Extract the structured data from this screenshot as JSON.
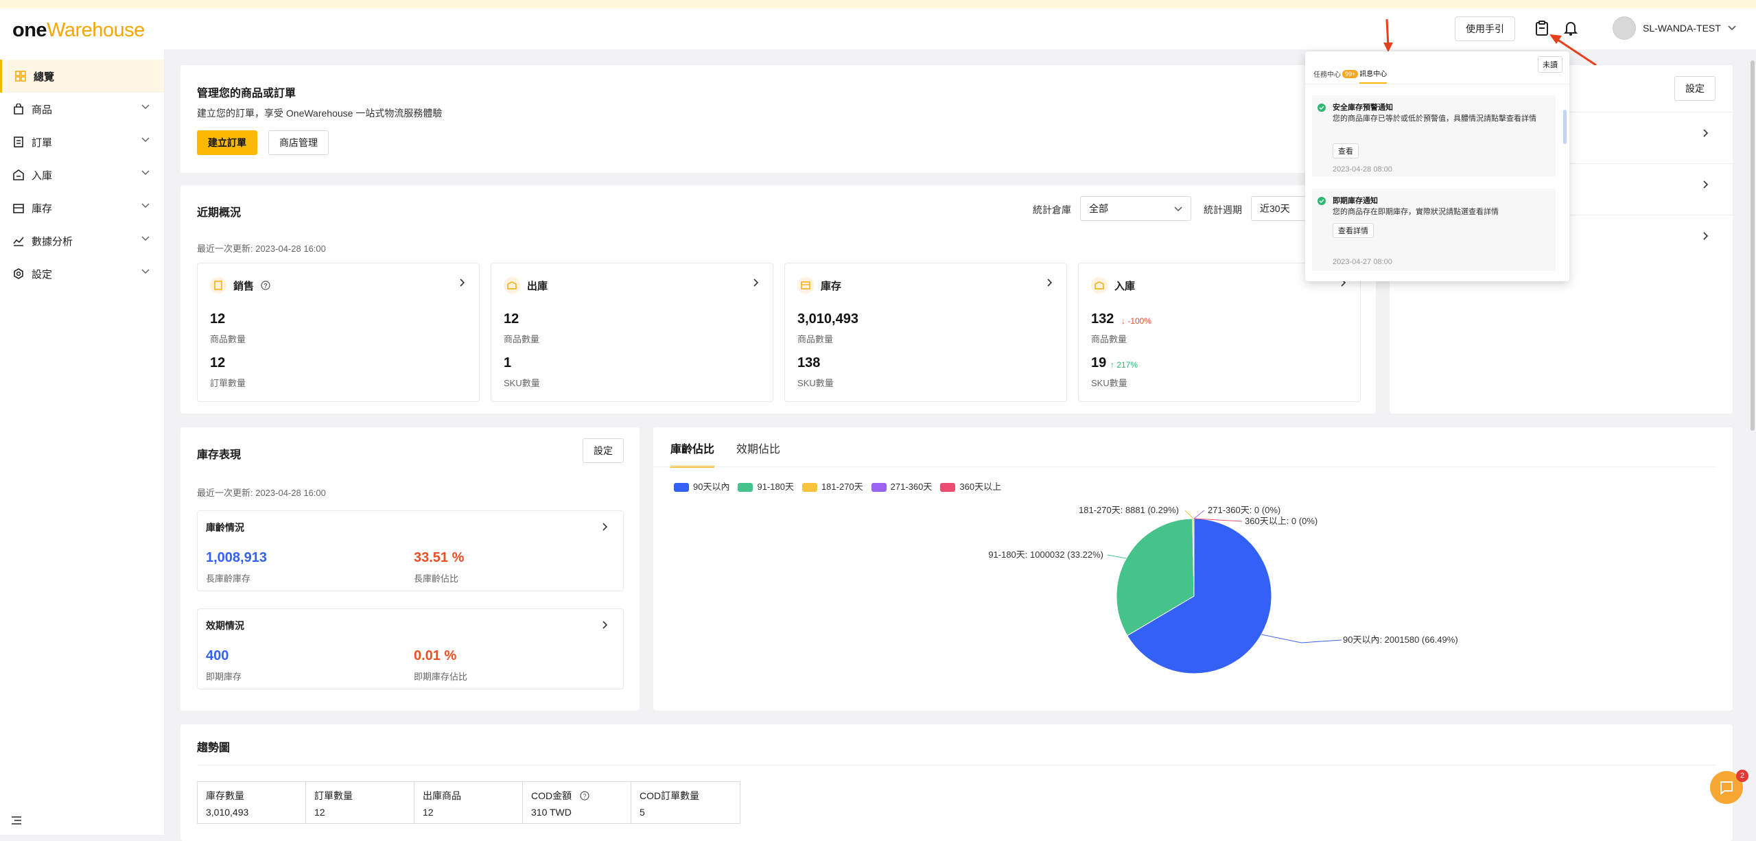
{
  "brand": {
    "one": "one",
    "warehouse": "Warehouse"
  },
  "topbar": {
    "guide_label": "使用手引",
    "user_name": "SL-WANDA-TEST"
  },
  "sidebar": {
    "items": [
      {
        "label": "總覽",
        "icon": "grid-icon",
        "active": true
      },
      {
        "label": "商品",
        "icon": "bag-icon"
      },
      {
        "label": "訂單",
        "icon": "order-icon"
      },
      {
        "label": "入庫",
        "icon": "inbound-icon"
      },
      {
        "label": "庫存",
        "icon": "stock-icon"
      },
      {
        "label": "數據分析",
        "icon": "analytics-icon"
      },
      {
        "label": "設定",
        "icon": "settings-icon"
      }
    ]
  },
  "manage": {
    "title": "管理您的商品或訂單",
    "desc": "建立您的訂單，享受 OneWarehouse 一站式物流服務體驗",
    "create_order": "建立訂單",
    "store_manage": "商店管理"
  },
  "overview": {
    "title": "近期概況",
    "warehouse_label": "統計倉庫",
    "warehouse_value": "全部",
    "period_label": "統計週期",
    "period_value": "近30天",
    "updated": "最近一次更新: 2023-04-28 16:00",
    "cards": [
      {
        "title": "銷售",
        "v1": "12",
        "l1": "商品數量",
        "v2": "12",
        "l2": "訂單數量"
      },
      {
        "title": "出庫",
        "v1": "12",
        "l1": "商品數量",
        "v2": "1",
        "l2": "SKU數量"
      },
      {
        "title": "庫存",
        "v1": "3,010,493",
        "l1": "商品數量",
        "v2": "138",
        "l2": "SKU數量"
      },
      {
        "title": "入庫",
        "v1": "132",
        "d1": "↓ -100%",
        "l1": "商品數量",
        "v2": "19",
        "d2": "↑ 217%",
        "l2": "SKU數量"
      }
    ]
  },
  "right_panel": {
    "settings": "設定"
  },
  "inventory": {
    "title": "庫存表現",
    "settings": "設定",
    "updated": "最近一次更新: 2023-04-28 16:00",
    "age": {
      "title": "庫齡情況",
      "v1": "1,008,913",
      "l1": "長庫齡庫存",
      "v2": "33.51 %",
      "l2": "長庫齡佔比"
    },
    "expiry": {
      "title": "效期情況",
      "v1": "400",
      "l1": "即期庫存",
      "v2": "0.01 %",
      "l2": "即期庫存佔比"
    }
  },
  "chart_panel": {
    "tabs": [
      "庫齡佔比",
      "效期佔比"
    ]
  },
  "chart_data": {
    "type": "pie",
    "categories": [
      "90天以內",
      "91-180天",
      "181-270天",
      "271-360天",
      "360天以上"
    ],
    "values": [
      2001580,
      1000032,
      8881,
      0,
      0
    ],
    "percents": [
      "66.49%",
      "33.22%",
      "0.29%",
      "0%",
      "0%"
    ],
    "colors": [
      "#3461f5",
      "#46c38a",
      "#f8c23c",
      "#9a63f2",
      "#ec4c72"
    ],
    "labels": [
      "90天以內: 2001580 (66.49%)",
      "91-180天: 1000032 (33.22%)",
      "181-270天: 8881 (0.29%)",
      "271-360天: 0 (0%)",
      "360天以上: 0 (0%)"
    ],
    "legend": "top-left"
  },
  "trend": {
    "title": "趨勢圖",
    "cells": [
      {
        "label": "庫存數量",
        "value": "3,010,493"
      },
      {
        "label": "訂單數量",
        "value": "12"
      },
      {
        "label": "出庫商品",
        "value": "12"
      },
      {
        "label": "COD金額",
        "value": "310 TWD"
      },
      {
        "label": "COD訂單數量",
        "value": "5"
      }
    ]
  },
  "notifications": {
    "tab_task": "任務中心",
    "task_badge": "99+",
    "tab_msg": "訊息中心",
    "unread": "未讀",
    "items": [
      {
        "title": "安全庫存預警通知",
        "body": "您的商品庫存已等於或低於預警值，具體情況請點擊查看詳情",
        "action": "查看",
        "time": "2023-04-28 08:00"
      },
      {
        "title": "即期庫存通知",
        "body": "您的商品存在即期庫存，實際狀況請點選查看詳情",
        "action": "查看詳情",
        "time": "2023-04-27 08:00"
      }
    ]
  },
  "chat": {
    "badge": "2"
  }
}
